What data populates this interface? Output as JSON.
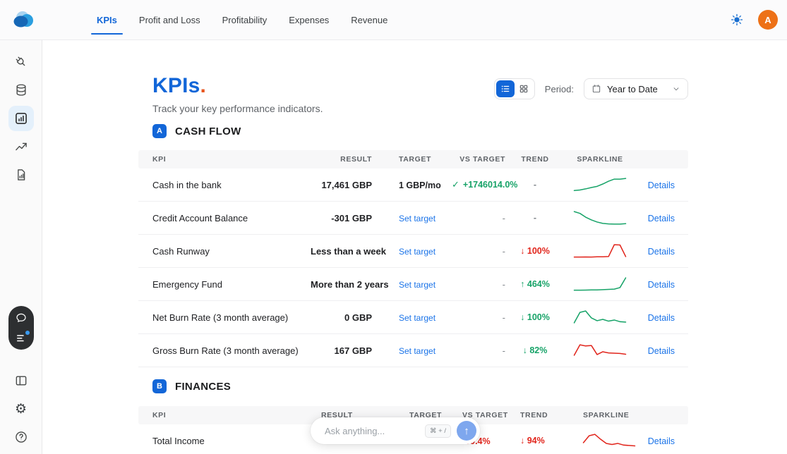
{
  "topbar": {
    "tabs": [
      {
        "label": "KPIs",
        "active": true
      },
      {
        "label": "Profit and Loss",
        "active": false
      },
      {
        "label": "Profitability",
        "active": false
      },
      {
        "label": "Expenses",
        "active": false
      },
      {
        "label": "Revenue",
        "active": false
      }
    ],
    "theme_icon": "sun-icon",
    "avatar_initial": "A"
  },
  "sidebar": {
    "icons": [
      "plug-icon",
      "database-icon",
      "bar-chart-icon",
      "trend-line-icon",
      "report-icon",
      "chat-bubble-icon",
      "task-list-icon",
      "panel-icon",
      "gear-icon",
      "help-icon"
    ],
    "active_item": "bar-chart-icon"
  },
  "header": {
    "title": "KPIs",
    "dot": ".",
    "subtitle": "Track your key performance indicators.",
    "period_label": "Period:",
    "period_value": "Year to Date"
  },
  "sections": [
    {
      "badge": "A",
      "title": "CASH FLOW",
      "columns": [
        "KPI",
        "RESULT",
        "TARGET",
        "VS TARGET",
        "TREND",
        "SPARKLINE"
      ],
      "rows": [
        {
          "kpi": "Cash in the bank",
          "result": "17,461 GBP",
          "target": "1 GBP/mo",
          "vs_check": "✓",
          "vs_target": "+1746014.0%",
          "trend_arrow": "",
          "trend_value": "-",
          "details": "Details",
          "spark": {
            "color": "#17a368",
            "points": [
              0.08,
              0.12,
              0.2,
              0.3,
              0.38,
              0.55,
              0.75,
              0.9,
              0.9,
              0.95
            ]
          }
        },
        {
          "kpi": "Credit Account Balance",
          "result": "-301 GBP",
          "target": "Set target",
          "vs_target": "-",
          "trend_arrow": "",
          "trend_value": "-",
          "details": "Details",
          "spark": {
            "color": "#17a368",
            "points": [
              0.95,
              0.82,
              0.55,
              0.35,
              0.2,
              0.1,
              0.06,
              0.05,
              0.05,
              0.08
            ]
          }
        },
        {
          "kpi": "Cash Runway",
          "result": "Less than a week",
          "target": "Set target",
          "vs_target": "-",
          "trend_arrow": "↓",
          "trend_value": "100%",
          "details": "Details",
          "spark": {
            "color": "#e1251c",
            "points": [
              0.06,
              0.06,
              0.07,
              0.06,
              0.08,
              0.08,
              0.1,
              0.95,
              0.93,
              0.1
            ]
          }
        },
        {
          "kpi": "Emergency Fund",
          "result": "More than 2 years",
          "target": "Set target",
          "vs_target": "-",
          "trend_arrow": "↑",
          "trend_value": "464%",
          "details": "Details",
          "spark": {
            "color": "#17a368",
            "points": [
              0.06,
              0.06,
              0.07,
              0.08,
              0.08,
              0.1,
              0.12,
              0.14,
              0.25,
              0.95
            ]
          }
        },
        {
          "kpi": "Net Burn Rate (3 month average)",
          "result": "0 GBP",
          "target": "Set target",
          "vs_target": "-",
          "trend_arrow": "↓",
          "trend_value": "100%",
          "details": "Details",
          "spark": {
            "color": "#17a368",
            "points": [
              0.1,
              0.85,
              0.95,
              0.45,
              0.25,
              0.35,
              0.22,
              0.3,
              0.18,
              0.15
            ]
          }
        },
        {
          "kpi": "Gross Burn Rate (3 month average)",
          "result": "167 GBP",
          "target": "Set target",
          "vs_target": "-",
          "trend_arrow": "↓",
          "trend_value": "82%",
          "details": "Details",
          "spark": {
            "color": "#e1251c",
            "points": [
              0.15,
              0.9,
              0.82,
              0.85,
              0.2,
              0.4,
              0.32,
              0.3,
              0.28,
              0.22
            ]
          }
        }
      ]
    },
    {
      "badge": "B",
      "title": "FINANCES",
      "columns": [
        "KPI",
        "RESULT",
        "TARGET",
        "VS TARGET",
        "TREND",
        "SPARKLINE"
      ],
      "rows": [
        {
          "kpi": "Total Income",
          "result": "",
          "target": "",
          "vs_target": "-99.4%",
          "trend_arrow": "↓",
          "trend_value": "94%",
          "details": "Details",
          "spark": {
            "color": "#e1251c",
            "points": [
              0.35,
              0.85,
              0.95,
              0.6,
              0.3,
              0.22,
              0.3,
              0.18,
              0.15,
              0.12
            ]
          }
        }
      ]
    }
  ],
  "ask_bar": {
    "placeholder": "Ask anything...",
    "shortcut": "⌘ + /",
    "send_icon": "↑"
  },
  "colors": {
    "accent": "#1266d8",
    "green": "#17a368",
    "red": "#e1251c",
    "link": "#1a73e8",
    "avatar_bg": "#ed7117",
    "title_dot": "#e8541d"
  }
}
